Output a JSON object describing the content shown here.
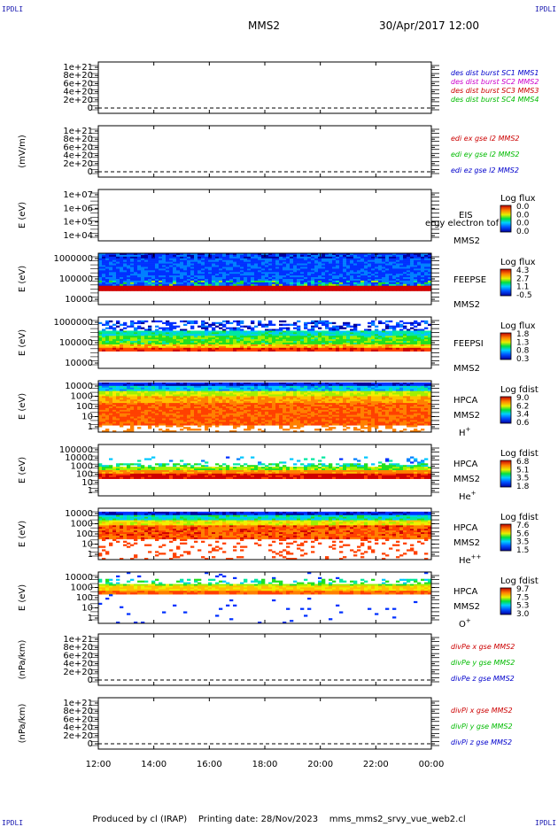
{
  "header": {
    "corner_label": "IPDLI",
    "spacecraft": "MMS2",
    "date_time": "30/Apr/2017 12:00"
  },
  "footer": {
    "produced_by": "Produced by cl (IRAP)",
    "printing_date": "Printing date: 28/Nov/2023",
    "script_name": "mms_mms2_srvy_vue_web2.cl"
  },
  "colors": {
    "mms1": "#0000cc",
    "mms2": "#cc00cc",
    "mms3": "#cc0000",
    "mms4": "#00bb00",
    "red": "#cc0000",
    "green": "#00bb00",
    "blue": "#0000cc"
  },
  "chart_data": {
    "type": "heatmap",
    "x_ticks": [
      "12:00",
      "14:00",
      "16:00",
      "18:00",
      "20:00",
      "22:00",
      "00:00"
    ],
    "panels": [
      {
        "id": "des-dist",
        "type": "line",
        "ylabel": "",
        "yticks": [
          "1e+21",
          "8e+20",
          "6e+20",
          "4e+20",
          "2e+20",
          "0"
        ],
        "ylim": [
          0,
          1e+21
        ],
        "legend": [
          {
            "text": "des dist burst SC1 MMS1",
            "color": "#0000cc"
          },
          {
            "text": "des dist burst SC2 MMS2",
            "color": "#cc00cc"
          },
          {
            "text": "des dist burst SC3 MMS3",
            "color": "#cc0000"
          },
          {
            "text": "des dist burst SC4 MMS4",
            "color": "#00bb00"
          }
        ]
      },
      {
        "id": "edi-e",
        "type": "line",
        "ylabel": "(mV/m)",
        "yticks": [
          "1e+21",
          "8e+20",
          "6e+20",
          "4e+20",
          "2e+20",
          "0"
        ],
        "ylim": [
          0,
          1e+21
        ],
        "legend": [
          {
            "text": "edi ex gse l2 MMS2",
            "color": "#cc0000"
          },
          {
            "text": "edi ey gse l2 MMS2",
            "color": "#00bb00"
          },
          {
            "text": "edi ez gse l2 MMS2",
            "color": "#0000cc"
          }
        ]
      },
      {
        "id": "eis",
        "type": "heatmap",
        "ylabel": "E (eV)",
        "yticks": [
          "1e+07",
          "1e+06",
          "1e+05",
          "1e+04"
        ],
        "instrument": "EIS",
        "sc": "MMS2",
        "species": "",
        "overlay_text": "ergy electron tof",
        "cb_title": "Log flux",
        "cb_ticks": [
          "0.0",
          "0.0",
          "0.0",
          "0.0"
        ],
        "profile": "empty"
      },
      {
        "id": "feeps-e",
        "type": "heatmap",
        "ylabel": "E (eV)",
        "yticks": [
          "1000000",
          "100000",
          "10000"
        ],
        "instrument": "FEEPSE",
        "sc": "MMS2",
        "species": "",
        "cb_title": "Log flux",
        "cb_ticks": [
          "4.3",
          "2.7",
          "1.1",
          "-0.5"
        ],
        "profile": "feepse"
      },
      {
        "id": "feeps-i",
        "type": "heatmap",
        "ylabel": "E (eV)",
        "yticks": [
          "1000000",
          "100000",
          "10000"
        ],
        "instrument": "FEEPSI",
        "sc": "MMS2",
        "species": "",
        "cb_title": "Log flux",
        "cb_ticks": [
          "1.8",
          "1.3",
          "0.8",
          "0.3"
        ],
        "profile": "feepsi"
      },
      {
        "id": "hpca-h",
        "type": "heatmap",
        "ylabel": "E (eV)",
        "yticks": [
          "10000",
          "1000",
          "100",
          "10",
          "1"
        ],
        "instrument": "HPCA",
        "sc": "MMS2",
        "species": "H",
        "species_sup": "+",
        "cb_title": "Log fdist",
        "cb_ticks": [
          "9.0",
          "6.2",
          "3.4",
          "0.6"
        ],
        "profile": "hplus"
      },
      {
        "id": "hpca-he",
        "type": "heatmap",
        "ylabel": "E (eV)",
        "yticks": [
          "100000",
          "10000",
          "1000",
          "100",
          "10",
          "1"
        ],
        "instrument": "HPCA",
        "sc": "MMS2",
        "species": "He",
        "species_sup": "+",
        "cb_title": "Log fdist",
        "cb_ticks": [
          "6.8",
          "5.1",
          "3.5",
          "1.8"
        ],
        "profile": "heplus"
      },
      {
        "id": "hpca-hepp",
        "type": "heatmap",
        "ylabel": "E (eV)",
        "yticks": [
          "10000",
          "1000",
          "100",
          "10",
          "1"
        ],
        "instrument": "HPCA",
        "sc": "MMS2",
        "species": "He",
        "species_sup": "++",
        "cb_title": "Log fdist",
        "cb_ticks": [
          "7.6",
          "5.6",
          "3.5",
          "1.5"
        ],
        "profile": "hepp"
      },
      {
        "id": "hpca-o",
        "type": "heatmap",
        "ylabel": "E (eV)",
        "yticks": [
          "10000",
          "1000",
          "100",
          "10",
          "1"
        ],
        "instrument": "HPCA",
        "sc": "MMS2",
        "species": "O",
        "species_sup": "+",
        "cb_title": "Log fdist",
        "cb_ticks": [
          "9.7",
          "7.5",
          "5.3",
          "3.0"
        ],
        "profile": "oplus"
      },
      {
        "id": "divpe",
        "type": "line",
        "ylabel": "(nPa/km)",
        "yticks": [
          "1e+21",
          "8e+20",
          "6e+20",
          "4e+20",
          "2e+20",
          "0"
        ],
        "ylim": [
          0,
          1e+21
        ],
        "legend": [
          {
            "text": "divPe x gse MMS2",
            "color": "#cc0000"
          },
          {
            "text": "divPe y gse MMS2",
            "color": "#00bb00"
          },
          {
            "text": "divPe z gse MMS2",
            "color": "#0000cc"
          }
        ]
      },
      {
        "id": "divpi",
        "type": "line",
        "ylabel": "(nPa/km)",
        "yticks": [
          "1e+21",
          "8e+20",
          "6e+20",
          "4e+20",
          "2e+20",
          "0"
        ],
        "ylim": [
          0,
          1e+21
        ],
        "legend": [
          {
            "text": "divPi x gse MMS2",
            "color": "#cc0000"
          },
          {
            "text": "divPi y gse MMS2",
            "color": "#00bb00"
          },
          {
            "text": "divPi z gse MMS2",
            "color": "#0000cc"
          }
        ]
      }
    ]
  }
}
